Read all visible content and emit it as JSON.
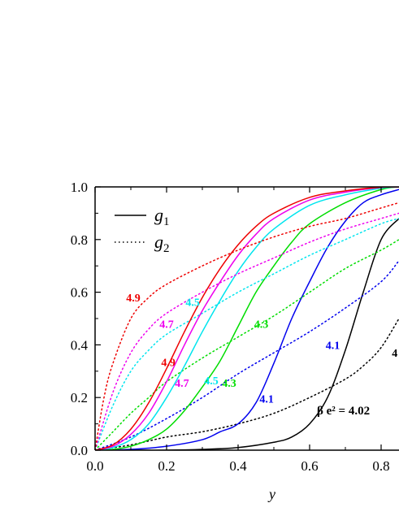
{
  "chart_data": {
    "type": "line",
    "xlabel": "y",
    "ylabel": "",
    "xlim": [
      0.0,
      0.85
    ],
    "ylim": [
      0.0,
      1.0
    ],
    "x_ticks": [
      "0.0",
      "0.2",
      "0.4",
      "0.6",
      "0.8"
    ],
    "y_ticks": [
      "0.0",
      "0.2",
      "0.4",
      "0.6",
      "0.8",
      "1.0"
    ],
    "legend": {
      "placement": "top-left",
      "entries": [
        {
          "symbol": "g",
          "subscript": "1",
          "style": "solid"
        },
        {
          "symbol": "g",
          "subscript": "2",
          "style": "dotted"
        }
      ]
    },
    "parameter_label": "β e² = 4.02",
    "colors": {
      "4.02": "#000000",
      "4.1": "#0000ee",
      "4.3": "#00dd00",
      "4.5": "#00e5ee",
      "4.7": "#ee00ee",
      "4.9": "#ee0000"
    },
    "series": [
      {
        "name": "4.02",
        "kind": "g1",
        "style": "solid",
        "x": [
          0.0,
          0.1,
          0.2,
          0.3,
          0.4,
          0.5,
          0.55,
          0.6,
          0.65,
          0.7,
          0.75,
          0.8,
          0.85
        ],
        "y": [
          0.0,
          0.0,
          0.0,
          0.003,
          0.01,
          0.03,
          0.05,
          0.1,
          0.2,
          0.38,
          0.6,
          0.8,
          0.88
        ]
      },
      {
        "name": "4.02",
        "kind": "g2",
        "style": "dotted",
        "x": [
          0.0,
          0.1,
          0.2,
          0.3,
          0.4,
          0.5,
          0.6,
          0.7,
          0.75,
          0.8,
          0.85
        ],
        "y": [
          0.0,
          0.02,
          0.05,
          0.07,
          0.1,
          0.14,
          0.2,
          0.27,
          0.32,
          0.39,
          0.5
        ]
      },
      {
        "name": "4.1",
        "kind": "g1",
        "style": "solid",
        "x": [
          0.0,
          0.1,
          0.2,
          0.3,
          0.35,
          0.4,
          0.45,
          0.5,
          0.55,
          0.6,
          0.65,
          0.7,
          0.75,
          0.8,
          0.85
        ],
        "y": [
          0.0,
          0.003,
          0.015,
          0.04,
          0.07,
          0.1,
          0.18,
          0.33,
          0.5,
          0.64,
          0.77,
          0.87,
          0.94,
          0.97,
          0.99
        ]
      },
      {
        "name": "4.1",
        "kind": "g2",
        "style": "dotted",
        "x": [
          0.0,
          0.1,
          0.2,
          0.3,
          0.4,
          0.5,
          0.6,
          0.7,
          0.8,
          0.85
        ],
        "y": [
          0.0,
          0.05,
          0.12,
          0.2,
          0.29,
          0.37,
          0.45,
          0.54,
          0.64,
          0.72
        ]
      },
      {
        "name": "4.3",
        "kind": "g1",
        "style": "solid",
        "x": [
          0.0,
          0.05,
          0.1,
          0.15,
          0.2,
          0.25,
          0.3,
          0.35,
          0.4,
          0.45,
          0.5,
          0.55,
          0.6,
          0.7,
          0.8,
          0.85
        ],
        "y": [
          0.0,
          0.003,
          0.015,
          0.04,
          0.08,
          0.15,
          0.24,
          0.34,
          0.47,
          0.6,
          0.7,
          0.79,
          0.86,
          0.94,
          0.99,
          1.0
        ]
      },
      {
        "name": "4.3",
        "kind": "g2",
        "style": "dotted",
        "x": [
          0.0,
          0.05,
          0.1,
          0.15,
          0.2,
          0.3,
          0.4,
          0.5,
          0.6,
          0.7,
          0.8,
          0.85
        ],
        "y": [
          0.0,
          0.07,
          0.14,
          0.2,
          0.26,
          0.35,
          0.43,
          0.51,
          0.6,
          0.69,
          0.76,
          0.8
        ]
      },
      {
        "name": "4.5",
        "kind": "g1",
        "style": "solid",
        "x": [
          0.0,
          0.05,
          0.1,
          0.15,
          0.2,
          0.25,
          0.3,
          0.35,
          0.4,
          0.45,
          0.5,
          0.6,
          0.7,
          0.8,
          0.85
        ],
        "y": [
          0.0,
          0.01,
          0.04,
          0.1,
          0.2,
          0.32,
          0.45,
          0.57,
          0.68,
          0.77,
          0.84,
          0.93,
          0.97,
          0.995,
          1.0
        ]
      },
      {
        "name": "4.5",
        "kind": "g2",
        "style": "dotted",
        "x": [
          0.0,
          0.05,
          0.1,
          0.15,
          0.2,
          0.3,
          0.4,
          0.5,
          0.6,
          0.7,
          0.8,
          0.85
        ],
        "y": [
          0.0,
          0.17,
          0.3,
          0.38,
          0.44,
          0.52,
          0.6,
          0.67,
          0.74,
          0.8,
          0.86,
          0.88
        ]
      },
      {
        "name": "4.7",
        "kind": "g1",
        "style": "solid",
        "x": [
          0.0,
          0.05,
          0.1,
          0.15,
          0.2,
          0.25,
          0.3,
          0.35,
          0.4,
          0.45,
          0.5,
          0.6,
          0.7,
          0.8,
          0.85
        ],
        "y": [
          0.0,
          0.015,
          0.06,
          0.14,
          0.26,
          0.4,
          0.53,
          0.64,
          0.74,
          0.82,
          0.88,
          0.95,
          0.98,
          0.998,
          1.0
        ]
      },
      {
        "name": "4.7",
        "kind": "g2",
        "style": "dotted",
        "x": [
          0.0,
          0.05,
          0.1,
          0.15,
          0.2,
          0.3,
          0.4,
          0.5,
          0.6,
          0.7,
          0.8,
          0.85
        ],
        "y": [
          0.0,
          0.22,
          0.37,
          0.46,
          0.52,
          0.6,
          0.67,
          0.73,
          0.79,
          0.84,
          0.88,
          0.9
        ]
      },
      {
        "name": "4.9",
        "kind": "g1",
        "style": "solid",
        "x": [
          0.0,
          0.05,
          0.1,
          0.15,
          0.2,
          0.25,
          0.3,
          0.35,
          0.4,
          0.45,
          0.5,
          0.6,
          0.7,
          0.8,
          0.85
        ],
        "y": [
          0.0,
          0.02,
          0.08,
          0.18,
          0.31,
          0.45,
          0.58,
          0.69,
          0.78,
          0.85,
          0.9,
          0.96,
          0.985,
          0.999,
          1.0
        ]
      },
      {
        "name": "4.9",
        "kind": "g2",
        "style": "dotted",
        "x": [
          0.0,
          0.025,
          0.05,
          0.1,
          0.15,
          0.2,
          0.3,
          0.4,
          0.5,
          0.6,
          0.7,
          0.8,
          0.85
        ],
        "y": [
          0.0,
          0.2,
          0.33,
          0.5,
          0.58,
          0.63,
          0.7,
          0.76,
          0.81,
          0.85,
          0.88,
          0.92,
          0.94
        ]
      }
    ],
    "annotations": [
      {
        "text": "4.9",
        "series": "4.9",
        "x": 0.087,
        "y": 0.565
      },
      {
        "text": "4.7",
        "series": "4.7",
        "x": 0.18,
        "y": 0.465
      },
      {
        "text": "4.5",
        "series": "4.5",
        "x": 0.253,
        "y": 0.548
      },
      {
        "text": "4.9",
        "series": "4.9",
        "x": 0.185,
        "y": 0.32
      },
      {
        "text": "4.7",
        "series": "4.7",
        "x": 0.223,
        "y": 0.24
      },
      {
        "text": "4.5",
        "series": "4.5",
        "x": 0.305,
        "y": 0.25
      },
      {
        "text": "4.3",
        "series": "4.3",
        "x": 0.355,
        "y": 0.24
      },
      {
        "text": "4.3",
        "series": "4.3",
        "x": 0.445,
        "y": 0.465
      },
      {
        "text": "4.1",
        "series": "4.1",
        "x": 0.46,
        "y": 0.18
      },
      {
        "text": "4.1",
        "series": "4.1",
        "x": 0.645,
        "y": 0.385
      },
      {
        "text": "4",
        "series": "4.02",
        "x": 0.83,
        "y": 0.355
      }
    ]
  }
}
